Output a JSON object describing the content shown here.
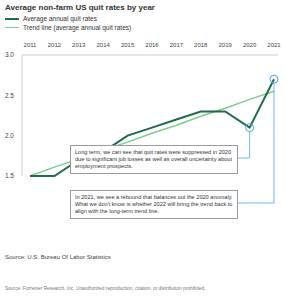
{
  "chart_data": {
    "type": "line",
    "title": "Average non-farm US quit rates by year",
    "categories": [
      "2011",
      "2012",
      "2013",
      "2014",
      "2015",
      "2016",
      "2017",
      "2018",
      "2019",
      "2020",
      "2021"
    ],
    "series": [
      {
        "name": "Average annual quit rates",
        "color": "#1f6b4c",
        "values": [
          1.5,
          1.5,
          1.7,
          1.8,
          2.0,
          2.1,
          2.2,
          2.3,
          2.3,
          2.1,
          2.7
        ]
      },
      {
        "name": "Trend line (average annual quit rates)",
        "color": "#7fcc8c",
        "values": [
          1.5,
          1.61,
          1.71,
          1.82,
          1.92,
          2.03,
          2.13,
          2.24,
          2.34,
          2.45,
          2.55
        ]
      }
    ],
    "ylim": [
      1.5,
      3.0
    ],
    "yticks": [
      1.5,
      {
        "value": 2,
        "label": "2.0"
      },
      2.5,
      {
        "value": 3,
        "label": "3.0"
      }
    ],
    "grid": false,
    "annotations": [
      "Long term, we can see that quit rates were suppressed in 2020 due to significant job losses as well as overall uncertainty about employment prospects.",
      "In 2021, we see a rebound that balances out the 2020 anomaly. What we don't know is whether 2022 will bring the trend back to align with the long-term trend line."
    ],
    "source": "Source: U.S. Bureau Of Labor Statistics",
    "footer": "Source: Forrester Research, Inc. Unauthorized reproduction, citation, or distribution prohibited."
  }
}
